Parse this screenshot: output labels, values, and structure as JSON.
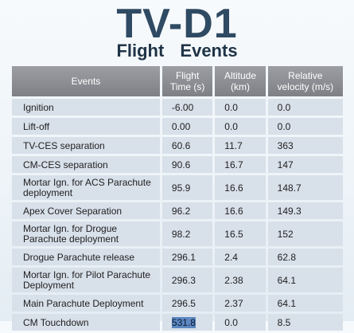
{
  "title": "TV-D1",
  "subtitle": "Flight   Events",
  "table": {
    "headers": [
      "Events",
      "Flight Time (s)",
      "Altitude (km)",
      "Relative velocity (m/s)"
    ],
    "rows": [
      {
        "event": "Ignition",
        "time": "-6.00",
        "altitude": "0.0",
        "velocity": "0.0"
      },
      {
        "event": "Lift-off",
        "time": "0.00",
        "altitude": "0.0",
        "velocity": "0.0"
      },
      {
        "event": "TV-CES separation",
        "time": "60.6",
        "altitude": "11.7",
        "velocity": "363"
      },
      {
        "event": "CM-CES separation",
        "time": "90.6",
        "altitude": "16.7",
        "velocity": "147"
      },
      {
        "event": "Mortar Ign. for ACS Parachute deployment",
        "time": "95.9",
        "altitude": "16.6",
        "velocity": "148.7"
      },
      {
        "event": "Apex Cover Separation",
        "time": "96.2",
        "altitude": "16.6",
        "velocity": "149.3"
      },
      {
        "event": "Mortar Ign. for Drogue Parachute deployment",
        "time": "98.2",
        "altitude": "16.5",
        "velocity": "152"
      },
      {
        "event": "Drogue Parachute release",
        "time": "296.1",
        "altitude": "2.4",
        "velocity": "62.8"
      },
      {
        "event": "Mortar Ign. for Pilot Parachute Deployment",
        "time": "296.3",
        "altitude": "2.38",
        "velocity": "64.1"
      },
      {
        "event": "Main Parachute Deployment",
        "time": "296.5",
        "altitude": "2.37",
        "velocity": "64.1"
      },
      {
        "event": "CM Touchdown",
        "time": "531.8",
        "altitude": "0.0",
        "velocity": "8.5"
      }
    ]
  }
}
